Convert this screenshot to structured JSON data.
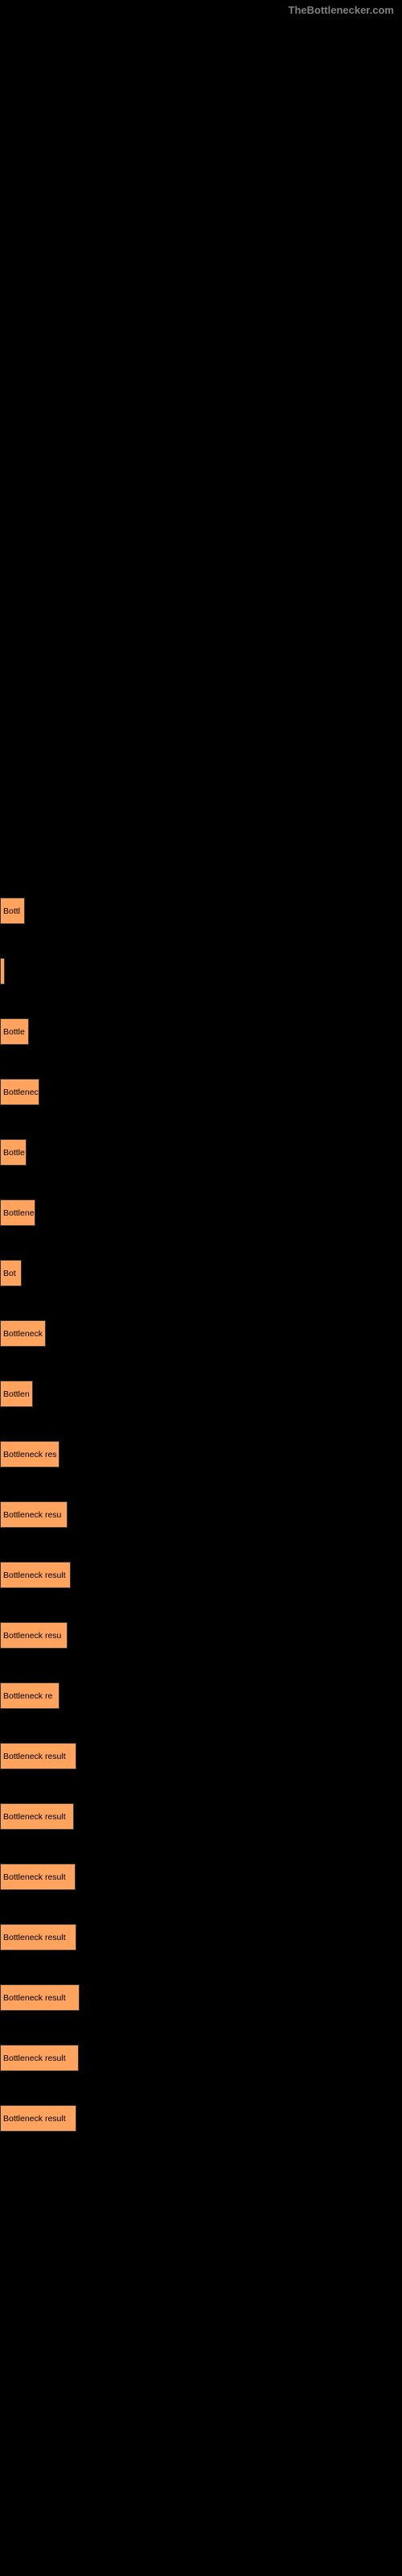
{
  "watermark": "TheBottlenecker.com",
  "bar_color": "#ffa35f",
  "bar_border_color": "#333333",
  "bar_text_color": "#000000",
  "background_color": "#000000",
  "bars": [
    {
      "width": 31,
      "label": "Bottl"
    },
    {
      "width": 6,
      "label": ""
    },
    {
      "width": 36,
      "label": "Bottle"
    },
    {
      "width": 49,
      "label": "Bottlenec"
    },
    {
      "width": 33,
      "label": "Bottle"
    },
    {
      "width": 44,
      "label": "Bottlene"
    },
    {
      "width": 27,
      "label": "Bot"
    },
    {
      "width": 57,
      "label": "Bottleneck"
    },
    {
      "width": 41,
      "label": "Bottlen"
    },
    {
      "width": 74,
      "label": "Bottleneck res"
    },
    {
      "width": 84,
      "label": "Bottleneck resu"
    },
    {
      "width": 88,
      "label": "Bottleneck result"
    },
    {
      "width": 84,
      "label": "Bottleneck resu"
    },
    {
      "width": 74,
      "label": "Bottleneck re"
    },
    {
      "width": 95,
      "label": "Bottleneck result"
    },
    {
      "width": 92,
      "label": "Bottleneck result"
    },
    {
      "width": 94,
      "label": "Bottleneck result"
    },
    {
      "width": 95,
      "label": "Bottleneck result"
    },
    {
      "width": 99,
      "label": "Bottleneck result"
    },
    {
      "width": 98,
      "label": "Bottleneck result"
    },
    {
      "width": 95,
      "label": "Bottleneck result"
    }
  ]
}
